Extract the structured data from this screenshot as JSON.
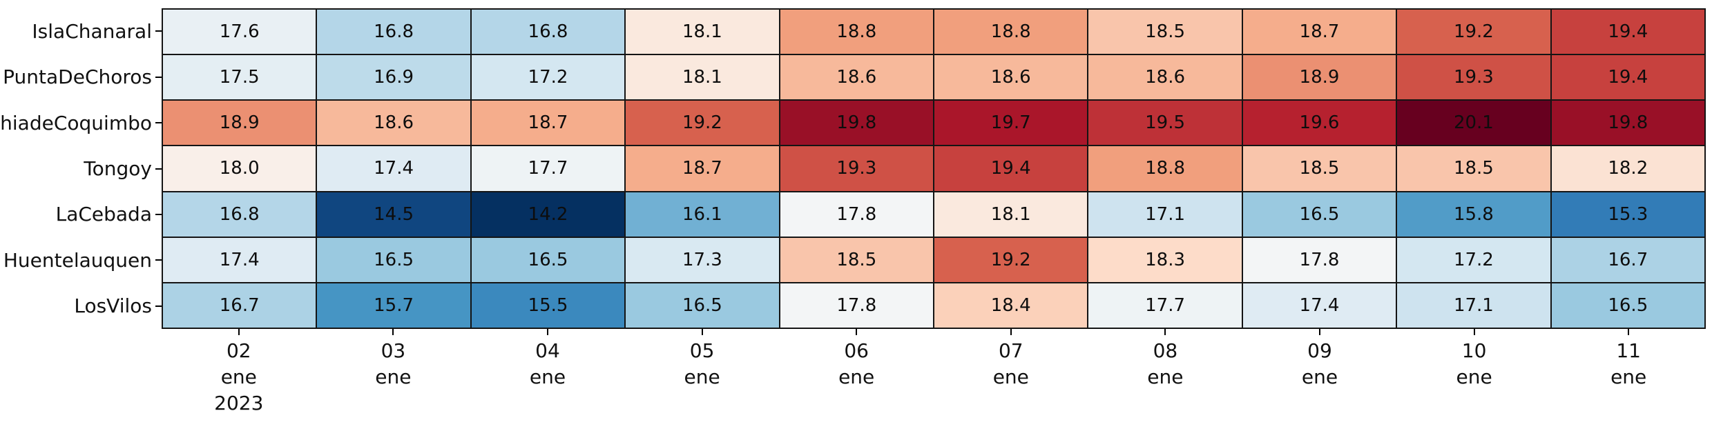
{
  "chart_data": {
    "type": "heatmap",
    "title": "",
    "xlabel": "",
    "ylabel": "",
    "grid": "black cell borders",
    "legend": "none",
    "rows": [
      "IslaChanaral",
      "PuntaDeChoros",
      "BahiadeCoquimbo",
      "Tongoy",
      "LaCebada",
      "Huentelauquen",
      "LosVilos"
    ],
    "x_tick_labels": [
      [
        "02",
        "ene",
        "2023"
      ],
      [
        "03",
        "ene"
      ],
      [
        "04",
        "ene"
      ],
      [
        "05",
        "ene"
      ],
      [
        "06",
        "ene"
      ],
      [
        "07",
        "ene"
      ],
      [
        "08",
        "ene"
      ],
      [
        "09",
        "ene"
      ],
      [
        "10",
        "ene"
      ],
      [
        "11",
        "ene"
      ]
    ],
    "values": [
      [
        17.6,
        16.8,
        16.8,
        18.1,
        18.8,
        18.8,
        18.5,
        18.7,
        19.2,
        19.4
      ],
      [
        17.5,
        16.9,
        17.2,
        18.1,
        18.6,
        18.6,
        18.6,
        18.9,
        19.3,
        19.4
      ],
      [
        18.9,
        18.6,
        18.7,
        19.2,
        19.8,
        19.7,
        19.5,
        19.6,
        20.1,
        19.8
      ],
      [
        18.0,
        17.4,
        17.7,
        18.7,
        19.3,
        19.4,
        18.8,
        18.5,
        18.5,
        18.2
      ],
      [
        16.8,
        14.5,
        14.2,
        16.1,
        17.8,
        18.1,
        17.1,
        16.5,
        15.8,
        15.3
      ],
      [
        17.4,
        16.5,
        16.5,
        17.3,
        18.5,
        19.2,
        18.3,
        17.8,
        17.2,
        16.7
      ],
      [
        16.7,
        15.7,
        15.5,
        16.5,
        17.8,
        18.4,
        17.7,
        17.4,
        17.1,
        16.5
      ]
    ],
    "value_decimals": 1,
    "colormap": {
      "name": "RdBu_r",
      "stops": [
        "#053061",
        "#2166ac",
        "#4393c3",
        "#92c5de",
        "#d1e5f0",
        "#f7f7f7",
        "#fddbc7",
        "#f4a582",
        "#d6604d",
        "#b2182b",
        "#67001f"
      ],
      "vmin": 14.2,
      "vcenter": 17.87,
      "vmax": 20.1
    },
    "cell_text_color": "#0d0d0d",
    "grid_line_color": "#141414"
  }
}
